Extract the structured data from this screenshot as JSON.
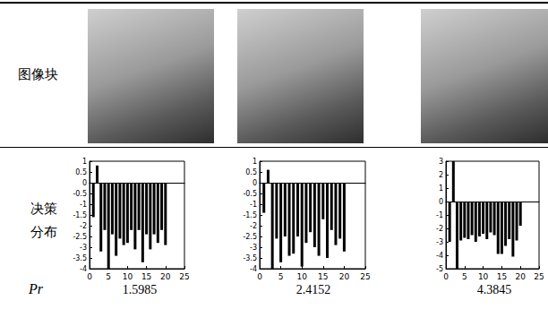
{
  "labels": {
    "images": "图像块",
    "distribution": [
      "决策",
      "分布"
    ],
    "pr": "Pr"
  },
  "pr_values": [
    1.5985,
    2.4152,
    4.3845
  ],
  "chart_data": [
    {
      "type": "bar",
      "x": [
        1,
        2,
        3,
        4,
        5,
        6,
        7,
        8,
        9,
        10,
        11,
        12,
        13,
        14,
        15,
        16,
        17,
        18,
        19,
        20
      ],
      "values": [
        -1.6,
        0.8,
        -3.2,
        -2.2,
        -4,
        -2.4,
        -3.4,
        -2.6,
        -2.9,
        -2.8,
        -2.2,
        -3.1,
        -2.2,
        -3.7,
        -2.4,
        -3.1,
        -2.4,
        -2.8,
        -2.2,
        -2.9
      ],
      "color": "#000000",
      "xlim": [
        0,
        25
      ],
      "xticks": [
        0,
        5,
        10,
        15,
        20,
        25
      ],
      "ylim": [
        -4,
        1
      ],
      "yticks": [
        -4,
        -3.5,
        -3,
        -2.5,
        -2,
        -1.5,
        -1,
        -0.5,
        0,
        0.5,
        1
      ],
      "grid": false
    },
    {
      "type": "bar",
      "x": [
        1,
        2,
        3,
        4,
        5,
        6,
        7,
        8,
        9,
        10,
        11,
        12,
        13,
        14,
        15,
        16,
        17,
        18,
        19,
        20
      ],
      "values": [
        -1.4,
        0.6,
        -4,
        -2.6,
        -3.7,
        -2.5,
        -3.4,
        -3.3,
        -2.5,
        -3.9,
        -2.8,
        -2.3,
        -3,
        -3.4,
        -1.7,
        -3.5,
        -2.2,
        -2.9,
        -2.6,
        -3.2
      ],
      "color": "#000000",
      "xlim": [
        0,
        25
      ],
      "xticks": [
        0,
        5,
        10,
        15,
        20,
        25
      ],
      "ylim": [
        -4,
        1
      ],
      "yticks": [
        -4,
        -3.5,
        -3,
        -2.5,
        -2,
        -1.5,
        -1,
        -0.5,
        0,
        0.5,
        1
      ],
      "grid": false
    },
    {
      "type": "bar",
      "x": [
        1,
        2,
        3,
        4,
        5,
        6,
        7,
        8,
        9,
        10,
        11,
        12,
        13,
        14,
        15,
        16,
        17,
        18,
        19,
        20
      ],
      "values": [
        -3,
        3,
        -5,
        -2.9,
        -2.7,
        -2.8,
        -2.5,
        -3,
        -2.6,
        -2.4,
        -2.8,
        -2.3,
        -2.5,
        -3.9,
        -3.9,
        -3.3,
        -2.8,
        -4.1,
        -2.9,
        -1.8
      ],
      "color": "#000000",
      "xlim": [
        0,
        25
      ],
      "xticks": [
        0,
        5,
        10,
        15,
        20,
        25
      ],
      "ylim": [
        -5,
        3
      ],
      "yticks": [
        -5,
        -4,
        -3,
        -2,
        -1,
        0,
        1,
        2,
        3
      ],
      "grid": false
    }
  ]
}
